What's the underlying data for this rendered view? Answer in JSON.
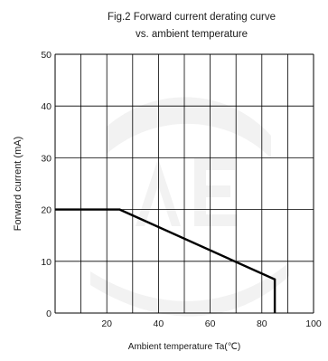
{
  "chart_data": {
    "type": "line",
    "title_line1": "Fig.2 Forward current derating curve",
    "title_line2": "vs. ambient temperature",
    "xlabel": "Ambient temperature Ta(℃)",
    "ylabel": "Forward current (mA)",
    "xlim": [
      0,
      100
    ],
    "ylim": [
      0,
      50
    ],
    "x_ticks": [
      20,
      40,
      60,
      80,
      100
    ],
    "y_ticks": [
      0,
      10,
      20,
      30,
      40,
      50
    ],
    "x_minor_grid_step": 10,
    "y_grid_step": 10,
    "grid": true,
    "series": [
      {
        "values": [
          [
            0,
            20
          ],
          [
            25,
            20
          ],
          [
            85,
            6.5
          ],
          [
            85,
            0
          ]
        ]
      }
    ],
    "colors": {
      "line": "#000000",
      "grid": "#000000",
      "watermark": "#d9d9d9"
    }
  }
}
